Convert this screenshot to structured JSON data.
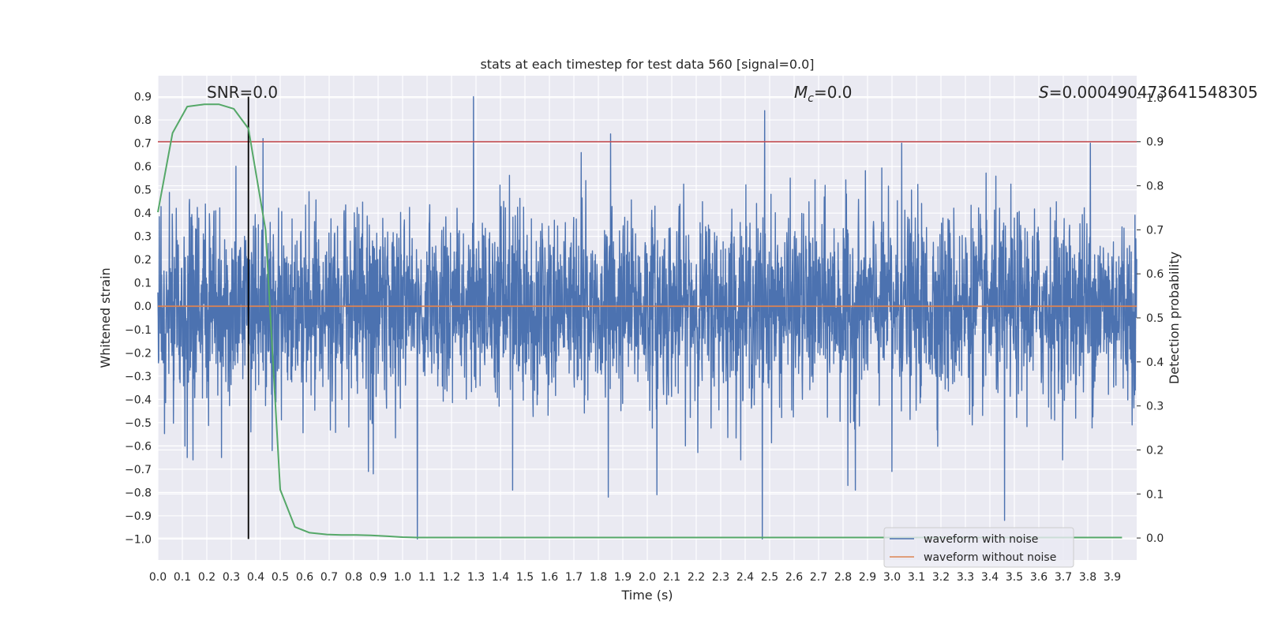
{
  "chart_data": {
    "type": "line",
    "title": "stats at each timestep for test data 560 [signal=0.0]",
    "xlabel": "Time (s)",
    "ylabel": "Whitened strain",
    "y2label": "Detection probability",
    "xlim": [
      0.0,
      4.0
    ],
    "ylim": [
      -1.09,
      0.99
    ],
    "y2lim": [
      -0.05,
      1.05
    ],
    "xticks": [
      "0.0",
      "0.1",
      "0.2",
      "0.3",
      "0.4",
      "0.5",
      "0.6",
      "0.7",
      "0.8",
      "0.9",
      "1.0",
      "1.1",
      "1.2",
      "1.3",
      "1.4",
      "1.5",
      "1.6",
      "1.7",
      "1.8",
      "1.9",
      "2.0",
      "2.1",
      "2.2",
      "2.3",
      "2.4",
      "2.5",
      "2.6",
      "2.7",
      "2.8",
      "2.9",
      "3.0",
      "3.1",
      "3.2",
      "3.3",
      "3.4",
      "3.5",
      "3.6",
      "3.7",
      "3.8",
      "3.9"
    ],
    "yticks": [
      "0.9",
      "0.8",
      "0.7",
      "0.6",
      "0.5",
      "0.4",
      "0.3",
      "0.2",
      "0.1",
      "0.0",
      "−0.1",
      "−0.2",
      "−0.3",
      "−0.4",
      "−0.5",
      "−0.6",
      "−0.7",
      "−0.8",
      "−0.9",
      "−1.0"
    ],
    "y2ticks": [
      "1.0",
      "0.9",
      "0.8",
      "0.7",
      "0.6",
      "0.5",
      "0.4",
      "0.3",
      "0.2",
      "0.1",
      "0.0"
    ],
    "grid": true,
    "legend": "bottom-right",
    "annotations": {
      "snr": "SNR=0.0",
      "mc_symbol": "M",
      "mc_sub": "c",
      "mc_value": "=0.0",
      "s_symbol": "S",
      "s_value": "=0.000490473641548305"
    },
    "series": [
      {
        "name": "waveform with noise",
        "color": "#4c72b0",
        "description": "dense random noise; max |amplitude| ~0.9",
        "spikes": [
          {
            "x": 1.29,
            "y": 0.9
          },
          {
            "x": 2.48,
            "y": 0.84
          },
          {
            "x": 1.06,
            "y": -1.0
          },
          {
            "x": 2.47,
            "y": -1.0
          },
          {
            "x": 3.46,
            "y": -0.92
          },
          {
            "x": 1.84,
            "y": -0.82
          },
          {
            "x": 2.04,
            "y": -0.81
          },
          {
            "x": 1.45,
            "y": -0.79
          },
          {
            "x": 2.85,
            "y": -0.79
          },
          {
            "x": 2.82,
            "y": -0.77
          },
          {
            "x": 3.0,
            "y": -0.71
          },
          {
            "x": 0.88,
            "y": -0.72
          },
          {
            "x": 0.86,
            "y": -0.71
          },
          {
            "x": 0.12,
            "y": -0.65
          },
          {
            "x": 0.26,
            "y": -0.65
          },
          {
            "x": 0.38,
            "y": -0.54
          },
          {
            "x": 1.85,
            "y": 0.74
          },
          {
            "x": 0.43,
            "y": 0.72
          },
          {
            "x": 3.04,
            "y": 0.7
          },
          {
            "x": 3.81,
            "y": 0.7
          },
          {
            "x": 1.73,
            "y": 0.66
          }
        ]
      },
      {
        "name": "waveform without noise",
        "color": "#dd8452",
        "y_constant": 0.0
      },
      {
        "name": "detection probability",
        "color": "#55a868",
        "axis": "right",
        "x": [
          0.0,
          0.06,
          0.12,
          0.19,
          0.25,
          0.31,
          0.37,
          0.44,
          0.5,
          0.56,
          0.62,
          0.69,
          0.75,
          0.81,
          0.87,
          0.94,
          1.0,
          1.06,
          1.5,
          2.0,
          2.5,
          3.0,
          3.5,
          3.94
        ],
        "y": [
          0.74,
          0.92,
          0.98,
          0.985,
          0.985,
          0.975,
          0.93,
          0.7,
          0.11,
          0.025,
          0.012,
          0.008,
          0.007,
          0.007,
          0.006,
          0.004,
          0.002,
          0.001,
          0.001,
          0.001,
          0.001,
          0.001,
          0.001,
          0.001
        ]
      }
    ],
    "hlines": [
      {
        "axis": "right",
        "y": 0.9,
        "color": "#c44e52"
      }
    ],
    "vlines": [
      {
        "x": 0.37,
        "ymin": -1.0,
        "ymax": 0.9,
        "color": "#000000"
      }
    ]
  }
}
